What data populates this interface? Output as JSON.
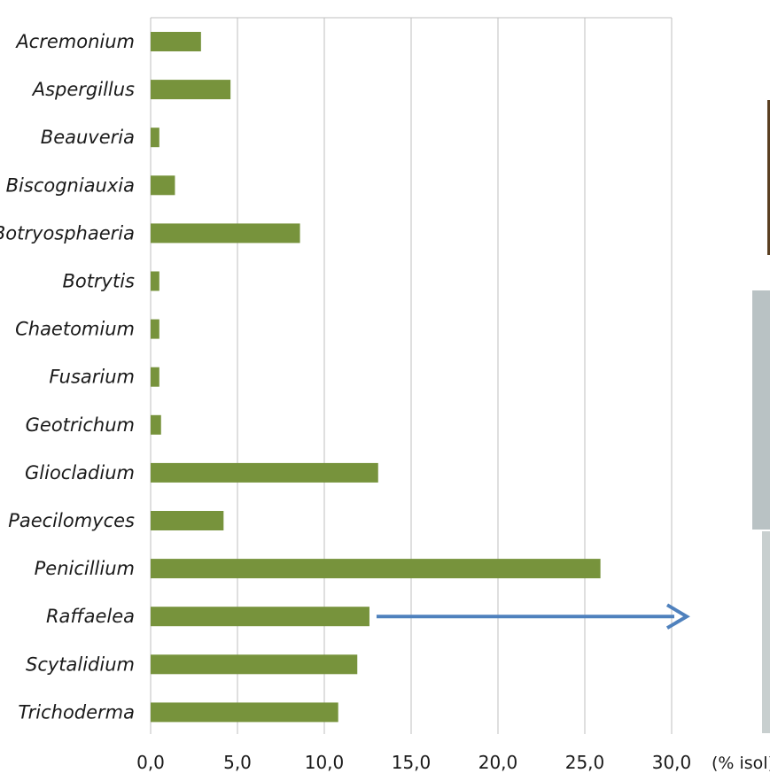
{
  "chart_data": {
    "type": "bar",
    "orientation": "horizontal",
    "categories": [
      "Acremonium",
      "Aspergillus",
      "Beauveria",
      "Biscogniauxia",
      "Botryosphaeria",
      "Botrytis",
      "Chaetomium",
      "Fusarium",
      "Geotrichum",
      "Gliocladium",
      "Paecilomyces",
      "Penicillium",
      "Raffaelea",
      "Scytalidium",
      "Trichoderma"
    ],
    "values": [
      2.9,
      4.6,
      0.5,
      1.4,
      8.6,
      0.5,
      0.5,
      0.5,
      0.6,
      13.1,
      4.2,
      25.9,
      12.6,
      11.9,
      10.8
    ],
    "title": "",
    "xlabel": "(% isol)",
    "ylabel": "",
    "xlim": [
      0,
      30
    ],
    "x_ticks": [
      0,
      5,
      10,
      15,
      20,
      25,
      30
    ],
    "x_tick_labels": [
      "0,0",
      "5,0",
      "10,0",
      "15,0",
      "20,0",
      "25,0",
      "30,0"
    ],
    "grid": "vertical",
    "legend": "none",
    "annotation": {
      "type": "arrow",
      "from_category": "Raffaelea",
      "direction": "right"
    },
    "colors": {
      "bar": "#77933c",
      "grid": "#bfbfbf",
      "arrow": "#4f81bd"
    }
  },
  "photos": [
    {
      "name": "photo-strip-1",
      "color": "#5a3f22"
    },
    {
      "name": "photo-strip-2",
      "color": "#b9c2c4"
    },
    {
      "name": "photo-strip-3",
      "color": "#c8cfcf"
    }
  ]
}
